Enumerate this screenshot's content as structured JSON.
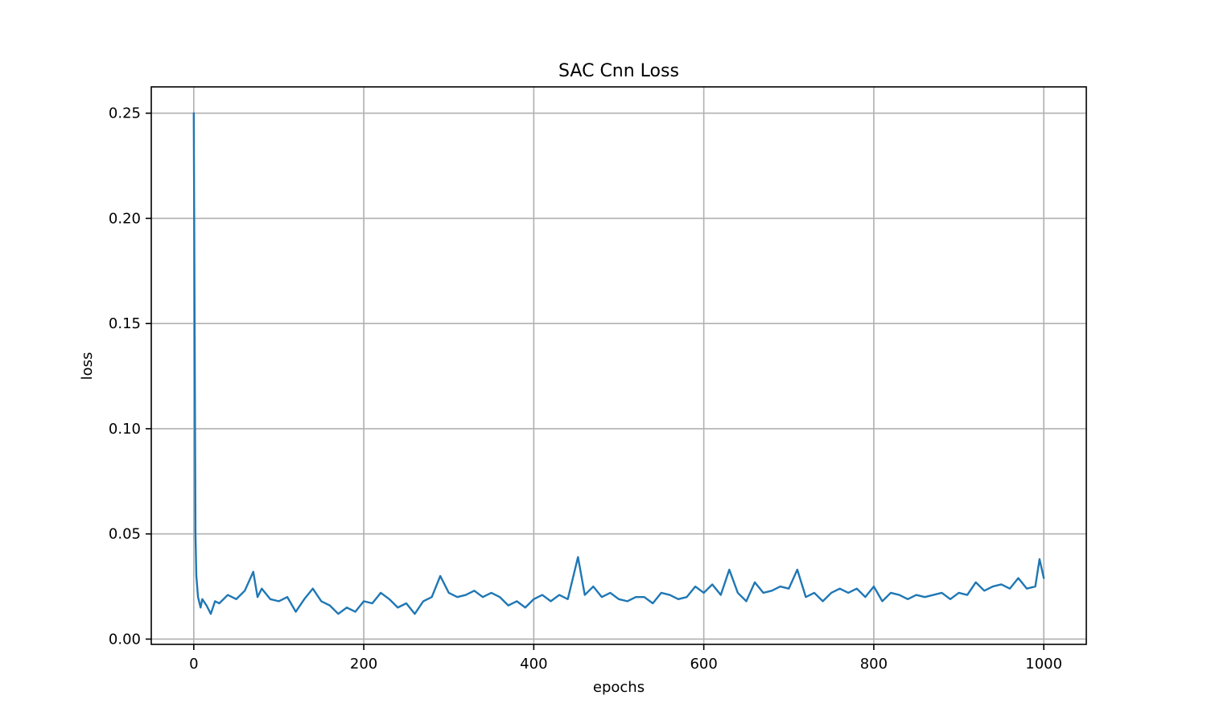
{
  "chart_data": {
    "type": "line",
    "title": "SAC Cnn Loss",
    "xlabel": "epochs",
    "ylabel": "loss",
    "xlim": [
      -50,
      1050
    ],
    "ylim": [
      -0.0025,
      0.2625
    ],
    "xticks": [
      0,
      200,
      400,
      600,
      800,
      1000
    ],
    "xtick_labels": [
      "0",
      "200",
      "400",
      "600",
      "800",
      "1000"
    ],
    "yticks": [
      0.0,
      0.05,
      0.1,
      0.15,
      0.2,
      0.25
    ],
    "ytick_labels": [
      "0.00",
      "0.05",
      "0.10",
      "0.15",
      "0.20",
      "0.25"
    ],
    "grid": true,
    "legend": "none",
    "series": [
      {
        "color": "#1f77b4",
        "x": [
          0,
          1,
          2,
          3,
          5,
          8,
          10,
          15,
          20,
          25,
          30,
          40,
          50,
          60,
          70,
          75,
          80,
          90,
          100,
          110,
          120,
          130,
          140,
          150,
          160,
          170,
          180,
          190,
          200,
          210,
          220,
          230,
          240,
          250,
          260,
          270,
          280,
          290,
          300,
          310,
          320,
          330,
          340,
          350,
          360,
          370,
          380,
          390,
          400,
          410,
          420,
          430,
          440,
          452,
          460,
          470,
          480,
          490,
          500,
          510,
          520,
          530,
          540,
          550,
          560,
          570,
          580,
          590,
          600,
          610,
          620,
          630,
          640,
          650,
          660,
          670,
          680,
          690,
          700,
          710,
          720,
          730,
          740,
          750,
          760,
          770,
          780,
          790,
          800,
          810,
          820,
          830,
          840,
          850,
          860,
          870,
          880,
          890,
          900,
          910,
          920,
          930,
          940,
          950,
          960,
          970,
          980,
          990,
          995,
          1000
        ],
        "y": [
          0.25,
          0.15,
          0.05,
          0.03,
          0.02,
          0.015,
          0.019,
          0.016,
          0.012,
          0.018,
          0.017,
          0.021,
          0.019,
          0.023,
          0.032,
          0.02,
          0.024,
          0.019,
          0.018,
          0.02,
          0.013,
          0.019,
          0.024,
          0.018,
          0.016,
          0.012,
          0.015,
          0.013,
          0.018,
          0.017,
          0.022,
          0.019,
          0.015,
          0.017,
          0.012,
          0.018,
          0.02,
          0.03,
          0.022,
          0.02,
          0.021,
          0.023,
          0.02,
          0.022,
          0.02,
          0.016,
          0.018,
          0.015,
          0.019,
          0.021,
          0.018,
          0.021,
          0.019,
          0.039,
          0.021,
          0.025,
          0.02,
          0.022,
          0.019,
          0.018,
          0.02,
          0.02,
          0.017,
          0.022,
          0.021,
          0.019,
          0.02,
          0.025,
          0.022,
          0.026,
          0.021,
          0.033,
          0.022,
          0.018,
          0.027,
          0.022,
          0.023,
          0.025,
          0.024,
          0.033,
          0.02,
          0.022,
          0.018,
          0.022,
          0.024,
          0.022,
          0.024,
          0.02,
          0.025,
          0.018,
          0.022,
          0.021,
          0.019,
          0.021,
          0.02,
          0.021,
          0.022,
          0.019,
          0.022,
          0.021,
          0.027,
          0.023,
          0.025,
          0.026,
          0.024,
          0.029,
          0.024,
          0.025,
          0.038,
          0.029
        ]
      }
    ]
  }
}
